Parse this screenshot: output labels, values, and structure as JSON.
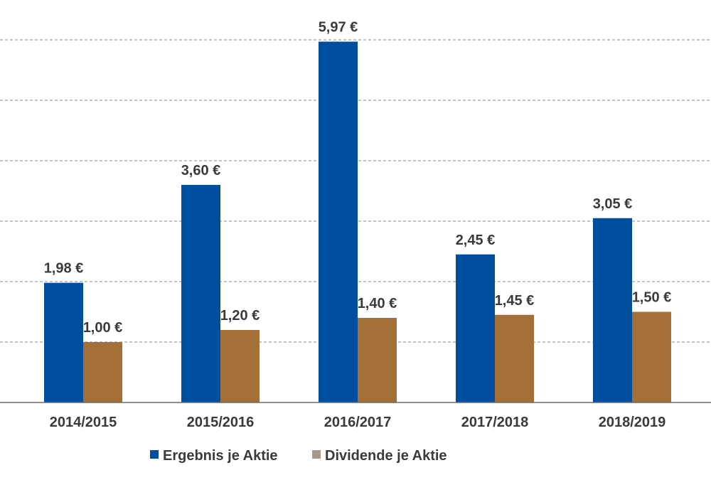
{
  "chart_data": {
    "type": "bar",
    "categories": [
      "2014/2015",
      "2015/2016",
      "2016/2017",
      "2017/2018",
      "2018/2019"
    ],
    "series": [
      {
        "name": "Ergebnis je Aktie",
        "color": "#004f9f",
        "values": [
          1.98,
          3.6,
          5.97,
          2.45,
          3.05
        ],
        "labels": [
          "1,98 €",
          "3,60 €",
          "5,97 €",
          "2,45 €",
          "3,05 €"
        ]
      },
      {
        "name": "Dividende je Aktie",
        "color": "#a56f38",
        "values": [
          1.0,
          1.2,
          1.4,
          1.45,
          1.5
        ],
        "labels": [
          "1,00 €",
          "1,20 €",
          "1,40 €",
          "1,45 €",
          "1,50 €"
        ]
      }
    ],
    "legend_colors": [
      "#004f9f",
      "#a6998c"
    ],
    "ylim": [
      0,
      6
    ],
    "gridlines": [
      1,
      2,
      3,
      4,
      5,
      6
    ],
    "grid": true,
    "legend_position": "bottom-center"
  }
}
